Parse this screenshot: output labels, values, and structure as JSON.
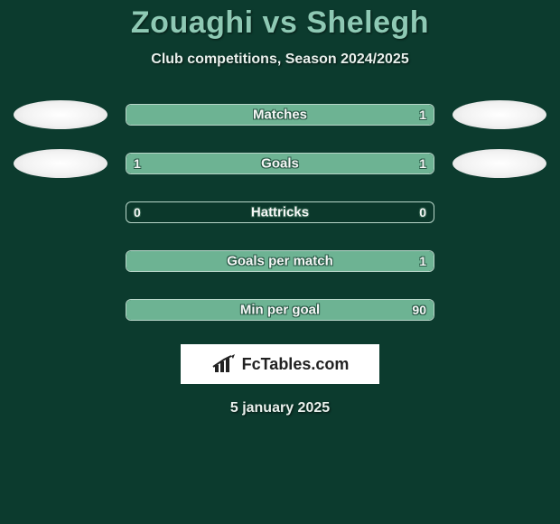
{
  "title": "Zouaghi vs Shelegh",
  "subtitle": "Club competitions, Season 2024/2025",
  "colors": {
    "background": "#0c3b2e",
    "title_color": "#8ec9b4",
    "text_color": "#e8f0ec",
    "bar_fill": "#6db393",
    "bar_border": "#b8d6c9",
    "badge_bg": "#f2f2f2",
    "logo_bg": "#ffffff"
  },
  "rows": [
    {
      "label": "Matches",
      "left": "",
      "right": "1",
      "left_pct": 0,
      "right_pct": 100,
      "show_badges": true
    },
    {
      "label": "Goals",
      "left": "1",
      "right": "1",
      "left_pct": 50,
      "right_pct": 50,
      "show_badges": true
    },
    {
      "label": "Hattricks",
      "left": "0",
      "right": "0",
      "left_pct": 0,
      "right_pct": 0,
      "show_badges": false
    },
    {
      "label": "Goals per match",
      "left": "",
      "right": "1",
      "left_pct": 0,
      "right_pct": 100,
      "show_badges": false
    },
    {
      "label": "Min per goal",
      "left": "",
      "right": "90",
      "left_pct": 0,
      "right_pct": 100,
      "show_badges": false
    }
  ],
  "logo_text": "FcTables.com",
  "date": "5 january 2025"
}
